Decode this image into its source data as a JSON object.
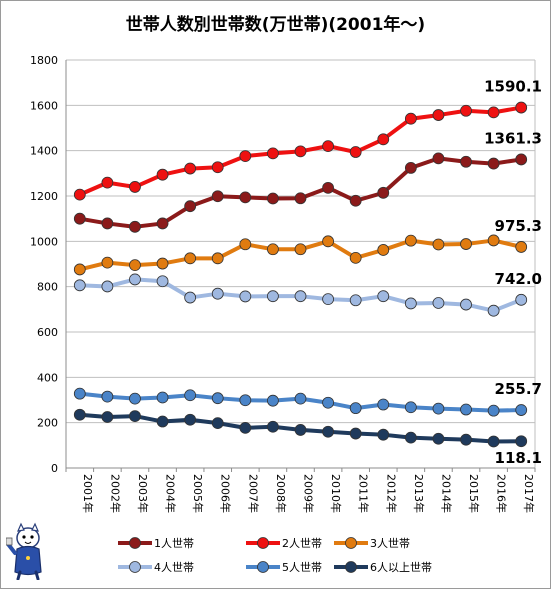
{
  "chart_data": {
    "type": "line",
    "title": "世帯人数別世帯数(万世帯)(2001年〜)",
    "categories": [
      "2001年",
      "2002年",
      "2003年",
      "2004年",
      "2005年",
      "2006年",
      "2007年",
      "2008年",
      "2009年",
      "2010年",
      "2011年",
      "2012年",
      "2013年",
      "2014年",
      "2015年",
      "2016年",
      "2017年"
    ],
    "ylim": [
      0,
      1800
    ],
    "yticks": [
      "0",
      "200",
      "400",
      "600",
      "800",
      "1000",
      "1200",
      "1400",
      "1600",
      "1800"
    ],
    "grid": true,
    "legend_position": "bottom",
    "series": [
      {
        "name": "1人世帯",
        "color": "#8b1a1a",
        "values": [
          1100,
          1079,
          1064,
          1079,
          1155,
          1199,
          1194,
          1189,
          1190,
          1236,
          1179,
          1214,
          1324,
          1366,
          1351,
          1343,
          1361.3
        ]
      },
      {
        "name": "2人世帯",
        "color": "#ee1111",
        "values": [
          1206,
          1259,
          1240,
          1294,
          1321,
          1327,
          1376,
          1388,
          1397,
          1420,
          1394,
          1450,
          1541,
          1557,
          1576,
          1569,
          1590.1
        ]
      },
      {
        "name": "3人世帯",
        "color": "#e07b10",
        "values": [
          876,
          906,
          895,
          902,
          925,
          925,
          987,
          965,
          965,
          1000,
          927,
          962,
          1003,
          986,
          988,
          1004,
          975.3
        ]
      },
      {
        "name": "4人世帯",
        "color": "#9fb8e0",
        "values": [
          806,
          801,
          832,
          824,
          752,
          769,
          757,
          758,
          758,
          745,
          740,
          758,
          726,
          728,
          721,
          694,
          742.0
        ]
      },
      {
        "name": "5人世帯",
        "color": "#4a84c8",
        "values": [
          328,
          315,
          306,
          311,
          321,
          308,
          299,
          297,
          306,
          288,
          264,
          280,
          268,
          262,
          258,
          253,
          255.7
        ]
      },
      {
        "name": "6人以上世帯",
        "color": "#1f3a5c",
        "values": [
          235,
          225,
          229,
          205,
          213,
          198,
          177,
          182,
          168,
          160,
          152,
          147,
          134,
          129,
          125,
          117,
          118.1
        ]
      }
    ],
    "end_labels": [
      "1590.1",
      "1361.3",
      "975.3",
      "742.0",
      "255.7",
      "118.1"
    ]
  }
}
